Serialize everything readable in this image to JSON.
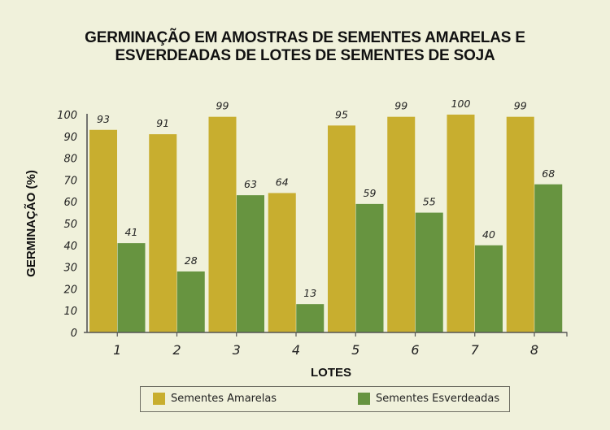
{
  "chart_data": {
    "type": "bar",
    "title_lines": [
      "GERMINAÇÃO EM AMOSTRAS DE SEMENTES AMARELAS E",
      "ESVERDEADAS DE LOTES DE SEMENTES DE SOJA"
    ],
    "xlabel": "LOTES",
    "ylabel": "GERMINAÇÃO (%)",
    "ylim": [
      0,
      100
    ],
    "yticks": [
      "0",
      "10",
      "20",
      "30",
      "40",
      "50",
      "60",
      "70",
      "80",
      "90",
      "100"
    ],
    "categories": [
      "1",
      "2",
      "3",
      "4",
      "5",
      "6",
      "7",
      "8"
    ],
    "series": [
      {
        "name": "Sementes Amarelas",
        "color": "#c8ae2f",
        "values": [
          93,
          91,
          99,
          64,
          95,
          99,
          100,
          99
        ]
      },
      {
        "name": "Sementes Esverdeadas",
        "color": "#679440",
        "values": [
          41,
          28,
          63,
          13,
          59,
          55,
          40,
          68
        ]
      }
    ],
    "grid": false,
    "legend_position": "bottom"
  }
}
